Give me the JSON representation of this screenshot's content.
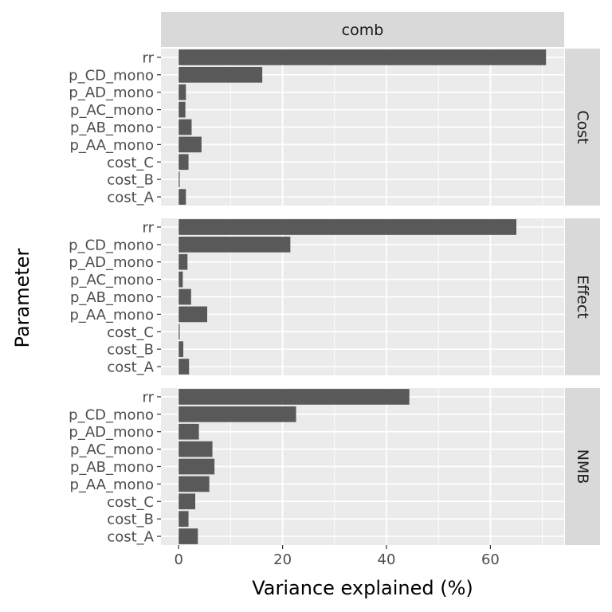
{
  "chart_data": {
    "type": "bar",
    "orientation": "horizontal",
    "xlabel": "Variance explained (%)",
    "ylabel": "Parameter",
    "xlim": [
      -3.4,
      74.2
    ],
    "x_ticks": [
      0,
      20,
      40,
      60
    ],
    "grid": true,
    "legend": "none",
    "column_facet": "comb",
    "categories": [
      "rr",
      "p_CD_mono",
      "p_AD_mono",
      "p_AC_mono",
      "p_AB_mono",
      "p_AA_mono",
      "cost_C",
      "cost_B",
      "cost_A"
    ],
    "facets": [
      {
        "name": "Cost",
        "values": [
          70.7,
          16.1,
          1.4,
          1.3,
          2.5,
          4.4,
          1.9,
          0.2,
          1.4
        ]
      },
      {
        "name": "Effect",
        "values": [
          65.0,
          21.5,
          1.7,
          0.8,
          2.4,
          5.5,
          0.2,
          0.9,
          2.0
        ]
      },
      {
        "name": "NMB",
        "values": [
          44.4,
          22.6,
          3.9,
          6.5,
          6.9,
          5.9,
          3.2,
          1.9,
          3.7
        ]
      }
    ]
  },
  "colors": {
    "panel_background": "#ebebeb",
    "strip_background": "#d9d9d9",
    "bar_fill": "#595959",
    "grid_line": "#ffffff"
  }
}
